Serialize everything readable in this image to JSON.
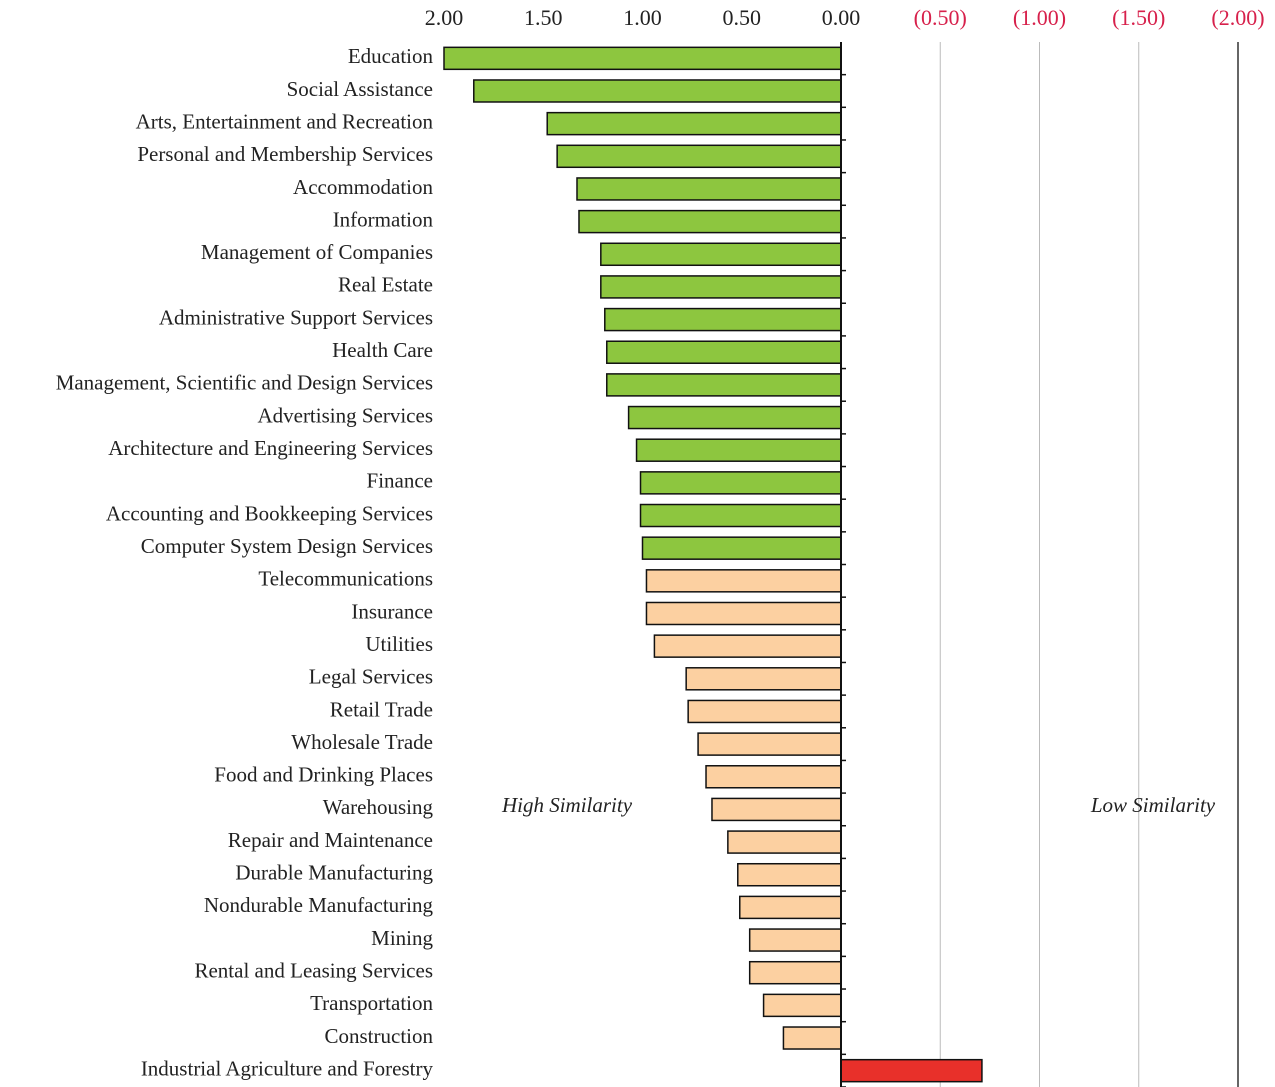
{
  "chart_data": {
    "type": "hbar",
    "categories": [
      "Education",
      "Social Assistance",
      "Arts, Entertainment and Recreation",
      "Personal and Membership Services",
      "Accommodation",
      "Information",
      "Management of Companies",
      "Real Estate",
      "Administrative Support Services",
      "Health Care",
      "Management, Scientific and Design Services",
      "Advertising Services",
      "Architecture and Engineering Services",
      "Finance",
      "Accounting and Bookkeeping Services",
      "Computer System Design Services",
      "Telecommunications",
      "Insurance",
      "Utilities",
      "Legal Services",
      "Retail Trade",
      "Wholesale Trade",
      "Food and Drinking Places",
      "Warehousing",
      "Repair and Maintenance",
      "Durable Manufacturing",
      "Nondurable Manufacturing",
      "Mining",
      "Rental and Leasing Services",
      "Transportation",
      "Construction",
      "Industrial Agriculture and Forestry"
    ],
    "values": [
      2.0,
      1.85,
      1.48,
      1.43,
      1.33,
      1.32,
      1.21,
      1.21,
      1.19,
      1.18,
      1.18,
      1.07,
      1.03,
      1.01,
      1.01,
      1.0,
      0.98,
      0.98,
      0.94,
      0.78,
      0.77,
      0.72,
      0.68,
      0.65,
      0.57,
      0.52,
      0.51,
      0.46,
      0.46,
      0.39,
      0.29,
      -0.71
    ],
    "colors": [
      "#8dc63f",
      "#8dc63f",
      "#8dc63f",
      "#8dc63f",
      "#8dc63f",
      "#8dc63f",
      "#8dc63f",
      "#8dc63f",
      "#8dc63f",
      "#8dc63f",
      "#8dc63f",
      "#8dc63f",
      "#8dc63f",
      "#8dc63f",
      "#8dc63f",
      "#8dc63f",
      "#fcd0a1",
      "#fcd0a1",
      "#fcd0a1",
      "#fcd0a1",
      "#fcd0a1",
      "#fcd0a1",
      "#fcd0a1",
      "#fcd0a1",
      "#fcd0a1",
      "#fcd0a1",
      "#fcd0a1",
      "#fcd0a1",
      "#fcd0a1",
      "#fcd0a1",
      "#fcd0a1",
      "#e8302a"
    ],
    "xlim": [
      2.0,
      -2.0
    ],
    "xticks": [
      {
        "value": 2,
        "label": "2.00"
      },
      {
        "value": 1.5,
        "label": "1.50"
      },
      {
        "value": 1,
        "label": "1.00"
      },
      {
        "value": 0.5,
        "label": "0.50"
      },
      {
        "value": 0,
        "label": "0.00"
      },
      {
        "value": -0.5,
        "label": "(0.50)"
      },
      {
        "value": -1,
        "label": "(1.00)"
      },
      {
        "value": -1.5,
        "label": "(1.50)"
      },
      {
        "value": -2,
        "label": "(2.00)"
      }
    ],
    "negative_tick_color": "#d7204b",
    "annotations": [
      "High Similarity",
      "Low Similarity"
    ]
  }
}
